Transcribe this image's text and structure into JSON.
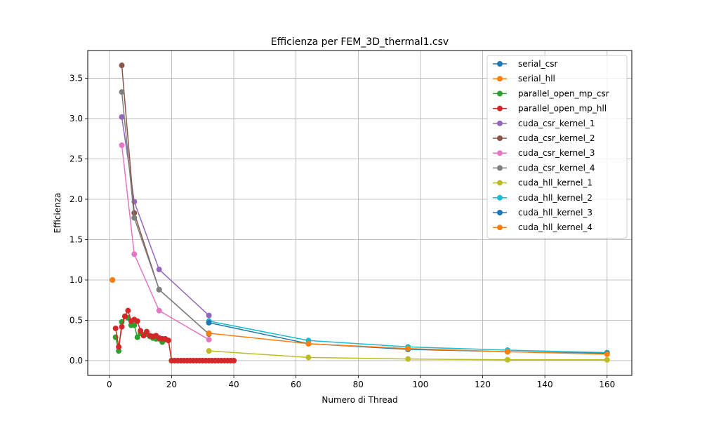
{
  "chart_data": {
    "type": "line",
    "title": "Efficienza per FEM_3D_thermal1.csv",
    "xlabel": "Numero di Thread",
    "ylabel": "Efficienza",
    "xlim": [
      -6.95,
      167.95
    ],
    "ylim": [
      -0.183,
      3.844
    ],
    "xticks": [
      0,
      20,
      40,
      60,
      80,
      100,
      120,
      140,
      160
    ],
    "yticks": [
      0.0,
      0.5,
      1.0,
      1.5,
      2.0,
      2.5,
      3.0,
      3.5
    ],
    "ytick_labels": [
      "0.0",
      "0.5",
      "1.0",
      "1.5",
      "2.0",
      "2.5",
      "3.0",
      "3.5"
    ],
    "grid": true,
    "legend_position": "upper-right",
    "series": [
      {
        "name": "serial_csr",
        "color": "#1f77b4",
        "points": [
          [
            1,
            1.0
          ]
        ]
      },
      {
        "name": "serial_hll",
        "color": "#ff7f0e",
        "points": [
          [
            1,
            1.0
          ]
        ]
      },
      {
        "name": "parallel_open_mp_csr",
        "color": "#2ca02c",
        "points": [
          [
            2,
            0.29
          ],
          [
            3,
            0.12
          ],
          [
            4,
            0.48
          ],
          [
            5,
            0.55
          ],
          [
            6,
            0.53
          ],
          [
            7,
            0.44
          ],
          [
            8,
            0.44
          ],
          [
            9,
            0.29
          ],
          [
            10,
            0.34
          ],
          [
            11,
            0.32
          ],
          [
            12,
            0.33
          ],
          [
            13,
            0.3
          ],
          [
            14,
            0.28
          ],
          [
            15,
            0.27
          ],
          [
            16,
            0.27
          ],
          [
            17,
            0.23
          ],
          [
            18,
            0.26
          ],
          [
            19,
            0.25
          ],
          [
            20,
            0.0
          ],
          [
            21,
            0.0
          ],
          [
            22,
            0.0
          ],
          [
            23,
            0.0
          ],
          [
            24,
            0.0
          ],
          [
            25,
            0.0
          ],
          [
            26,
            0.0
          ],
          [
            27,
            0.0
          ],
          [
            28,
            0.0
          ],
          [
            29,
            0.0
          ],
          [
            30,
            0.0
          ],
          [
            31,
            0.0
          ],
          [
            32,
            0.0
          ],
          [
            33,
            0.0
          ],
          [
            34,
            0.0
          ],
          [
            35,
            0.0
          ],
          [
            36,
            0.0
          ],
          [
            37,
            0.0
          ],
          [
            38,
            0.0
          ],
          [
            39,
            0.0
          ],
          [
            40,
            0.0
          ]
        ]
      },
      {
        "name": "parallel_open_mp_hll",
        "color": "#d62728",
        "points": [
          [
            2,
            0.4
          ],
          [
            3,
            0.17
          ],
          [
            4,
            0.42
          ],
          [
            5,
            0.55
          ],
          [
            6,
            0.62
          ],
          [
            7,
            0.49
          ],
          [
            8,
            0.51
          ],
          [
            9,
            0.49
          ],
          [
            10,
            0.37
          ],
          [
            11,
            0.31
          ],
          [
            12,
            0.36
          ],
          [
            13,
            0.31
          ],
          [
            14,
            0.3
          ],
          [
            15,
            0.31
          ],
          [
            16,
            0.28
          ],
          [
            17,
            0.27
          ],
          [
            18,
            0.27
          ],
          [
            19,
            0.25
          ],
          [
            20,
            0.0
          ],
          [
            21,
            0.0
          ],
          [
            22,
            0.0
          ],
          [
            23,
            0.0
          ],
          [
            24,
            0.0
          ],
          [
            25,
            0.0
          ],
          [
            26,
            0.0
          ],
          [
            27,
            0.0
          ],
          [
            28,
            0.0
          ],
          [
            29,
            0.0
          ],
          [
            30,
            0.0
          ],
          [
            31,
            0.0
          ],
          [
            32,
            0.0
          ],
          [
            33,
            0.0
          ],
          [
            34,
            0.0
          ],
          [
            35,
            0.0
          ],
          [
            36,
            0.0
          ],
          [
            37,
            0.0
          ],
          [
            38,
            0.0
          ],
          [
            39,
            0.0
          ],
          [
            40,
            0.0
          ]
        ]
      },
      {
        "name": "cuda_csr_kernel_1",
        "color": "#9467bd",
        "points": [
          [
            4,
            3.02
          ],
          [
            8,
            1.97
          ],
          [
            16,
            1.13
          ],
          [
            32,
            0.56
          ]
        ]
      },
      {
        "name": "cuda_csr_kernel_2",
        "color": "#8c564b",
        "points": [
          [
            4,
            3.66
          ],
          [
            8,
            1.83
          ],
          [
            16,
            0.88
          ],
          [
            32,
            0.33
          ]
        ]
      },
      {
        "name": "cuda_csr_kernel_3",
        "color": "#e377c2",
        "points": [
          [
            4,
            2.67
          ],
          [
            8,
            1.32
          ],
          [
            16,
            0.62
          ],
          [
            32,
            0.26
          ]
        ]
      },
      {
        "name": "cuda_csr_kernel_4",
        "color": "#7f7f7f",
        "points": [
          [
            4,
            3.33
          ],
          [
            8,
            1.77
          ],
          [
            16,
            0.88
          ],
          [
            32,
            0.33
          ]
        ]
      },
      {
        "name": "cuda_hll_kernel_1",
        "color": "#bcbd22",
        "points": [
          [
            32,
            0.12
          ],
          [
            64,
            0.04
          ],
          [
            96,
            0.02
          ],
          [
            128,
            0.01
          ],
          [
            160,
            0.01
          ]
        ]
      },
      {
        "name": "cuda_hll_kernel_2",
        "color": "#17becf",
        "points": [
          [
            32,
            0.49
          ],
          [
            64,
            0.25
          ],
          [
            96,
            0.17
          ],
          [
            128,
            0.13
          ],
          [
            160,
            0.1
          ]
        ]
      },
      {
        "name": "cuda_hll_kernel_3",
        "color": "#1f77b4",
        "points": [
          [
            32,
            0.47
          ],
          [
            64,
            0.21
          ],
          [
            96,
            0.14
          ],
          [
            128,
            0.11
          ],
          [
            160,
            0.09
          ]
        ]
      },
      {
        "name": "cuda_hll_kernel_4",
        "color": "#ff7f0e",
        "points": [
          [
            32,
            0.34
          ],
          [
            64,
            0.21
          ],
          [
            96,
            0.15
          ],
          [
            128,
            0.11
          ],
          [
            160,
            0.08
          ]
        ]
      }
    ]
  }
}
